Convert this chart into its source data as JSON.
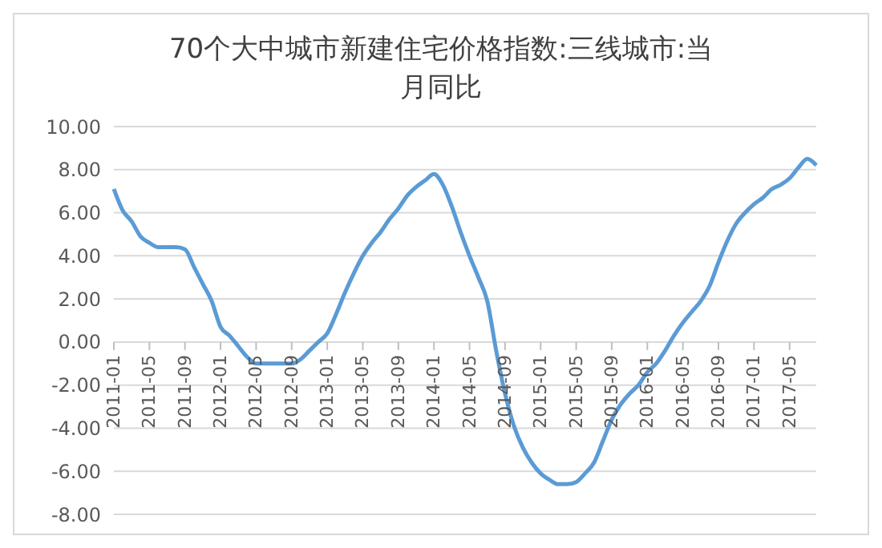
{
  "chart_data": {
    "type": "line",
    "title": "70个大中城市新建住宅价格指数:三线城市:当月同比",
    "categories": [
      "2011-01",
      null,
      null,
      null,
      "2011-05",
      null,
      null,
      null,
      "2011-09",
      null,
      null,
      null,
      "2012-01",
      null,
      null,
      null,
      "2012-05",
      null,
      null,
      null,
      "2012-09",
      null,
      null,
      null,
      "2013-01",
      null,
      null,
      null,
      "2013-05",
      null,
      null,
      null,
      "2013-09",
      null,
      null,
      null,
      "2014-01",
      null,
      null,
      null,
      "2014-05",
      null,
      null,
      null,
      "2014-09",
      null,
      null,
      null,
      "2015-01",
      null,
      null,
      null,
      "2015-05",
      null,
      null,
      null,
      "2015-09",
      null,
      null,
      null,
      "2016-01",
      null,
      null,
      null,
      "2016-05",
      null,
      null,
      null,
      "2016-09",
      null,
      null,
      null,
      "2017-01",
      null,
      null,
      null,
      "2017-05",
      null,
      null,
      null
    ],
    "series": [
      {
        "color": "#5b9bd5",
        "values": [
          7.1,
          6.1,
          5.6,
          4.9,
          4.6,
          4.4,
          4.4,
          4.4,
          4.3,
          3.5,
          2.7,
          1.9,
          0.7,
          0.3,
          -0.2,
          -0.7,
          -1.0,
          -1.0,
          -1.0,
          -1.0,
          -1.0,
          -0.8,
          -0.4,
          0.0,
          0.4,
          1.3,
          2.3,
          3.2,
          4.0,
          4.6,
          5.1,
          5.7,
          6.2,
          6.8,
          7.2,
          7.5,
          7.8,
          7.3,
          6.3,
          5.1,
          4.0,
          3.0,
          1.9,
          -0.4,
          -2.4,
          -3.9,
          -4.9,
          -5.6,
          -6.1,
          -6.4,
          -6.6,
          -6.6,
          -6.5,
          -6.1,
          -5.6,
          -4.6,
          -3.6,
          -2.9,
          -2.4,
          -2.0,
          -1.4,
          -1.0,
          -0.4,
          0.3,
          0.9,
          1.4,
          1.9,
          2.6,
          3.7,
          4.7,
          5.5,
          6.0,
          6.4,
          6.7,
          7.1,
          7.3,
          7.6,
          8.1,
          8.5,
          8.2
        ]
      }
    ],
    "ylim": [
      -8,
      10
    ],
    "yticks": [
      {
        "value": -8,
        "label": "-8.00"
      },
      {
        "value": -6,
        "label": "-6.00"
      },
      {
        "value": -4,
        "label": "-4.00"
      },
      {
        "value": -2,
        "label": "-2.00"
      },
      {
        "value": 0,
        "label": "0.00"
      },
      {
        "value": 2,
        "label": "2.00"
      },
      {
        "value": 4,
        "label": "4.00"
      },
      {
        "value": 6,
        "label": "6.00"
      },
      {
        "value": 8,
        "label": "8.00"
      },
      {
        "value": 10,
        "label": "10.00"
      }
    ],
    "grid": "y",
    "marker": "none",
    "line_style": "solid"
  }
}
